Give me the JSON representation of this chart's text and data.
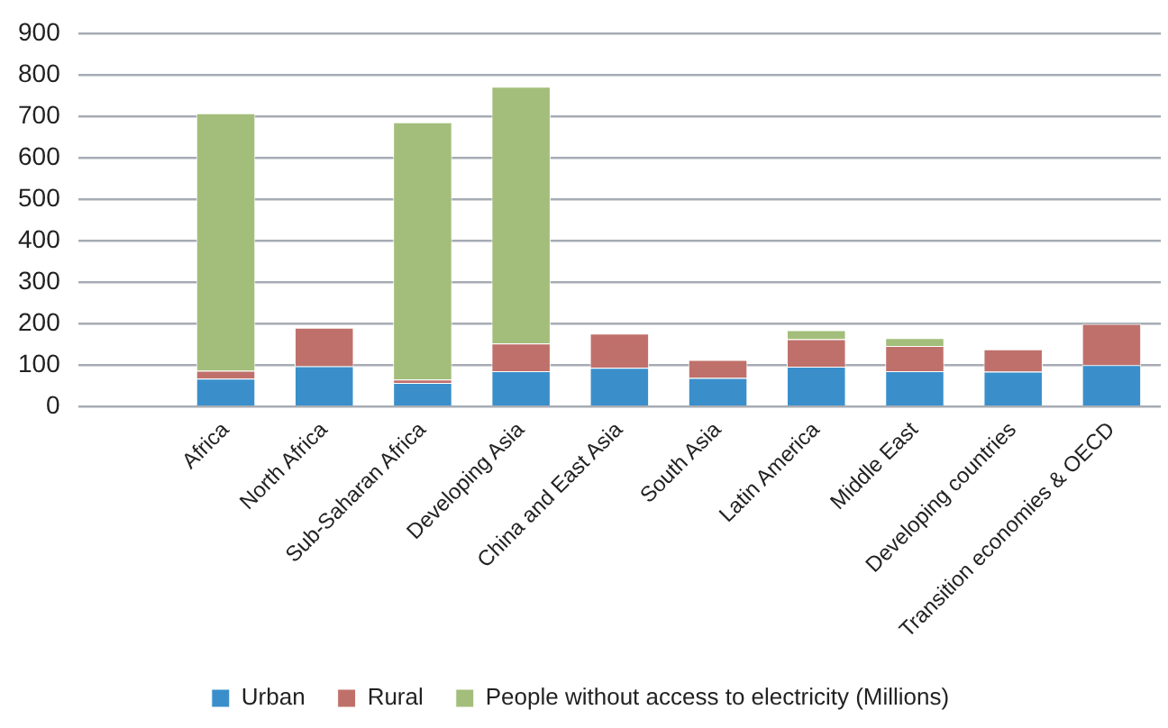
{
  "chart_data": {
    "type": "bar",
    "stacked": true,
    "categories": [
      null,
      "Africa",
      "North Africa",
      "Sub-Saharan Africa",
      "Developing Asia",
      "China and East Asia",
      "South Asia",
      "Latin America",
      "Middle East",
      "Developing countries",
      "Transition economies & OECD"
    ],
    "series": [
      {
        "name": "Urban",
        "color": "#3a8fcb",
        "values": [
          null,
          67,
          97,
          57,
          85,
          93,
          69,
          96,
          85,
          84,
          100
        ]
      },
      {
        "name": "Rural",
        "color": "#c0706a",
        "values": [
          null,
          19,
          93,
          8,
          67,
          83,
          43,
          66,
          61,
          54,
          99
        ]
      },
      {
        "name": "People without access to electricity (Millions)",
        "color": "#a3be7a",
        "values": [
          null,
          621,
          null,
          620,
          619,
          null,
          null,
          22,
          19,
          null,
          null
        ]
      }
    ],
    "ylim": [
      0,
      900
    ],
    "yticks": [
      0,
      100,
      200,
      300,
      400,
      500,
      600,
      700,
      800,
      900
    ],
    "grid": "y",
    "legend": "bottom"
  }
}
